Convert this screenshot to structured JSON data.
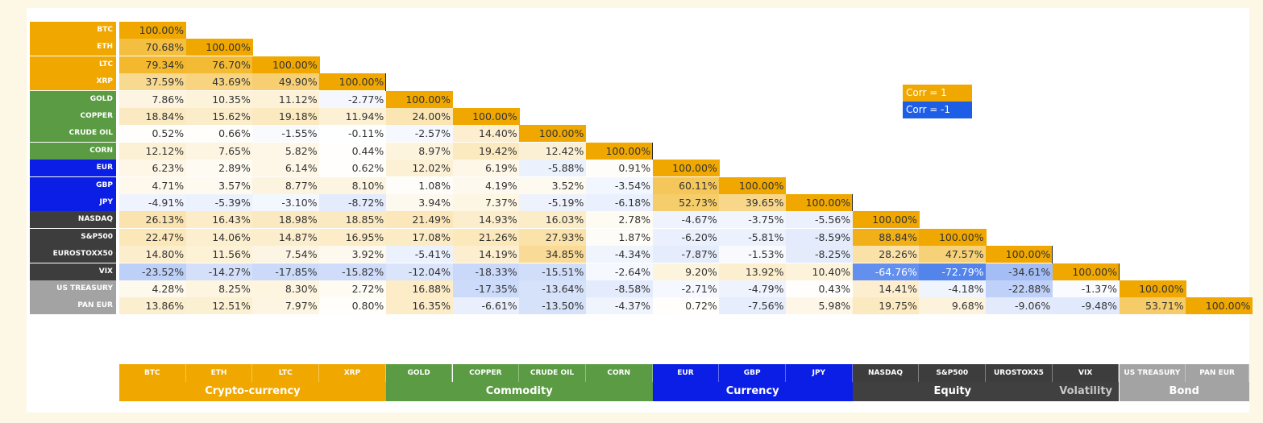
{
  "chart_data": {
    "type": "heatmap",
    "title": "",
    "value_format": "percent",
    "assets": [
      "BTC",
      "ETH",
      "LTC",
      "XRP",
      "GOLD",
      "COPPER",
      "CRUDE OIL",
      "CORN",
      "EUR",
      "GBP",
      "JPY",
      "NASDAQ",
      "S&P500",
      "EUROSTOXX50",
      "VIX",
      "US TREASURY",
      "PAN EUR"
    ],
    "column_labels": [
      "BTC",
      "ETH",
      "LTC",
      "XRP",
      "GOLD",
      "COPPER",
      "CRUDE OIL",
      "CORN",
      "EUR",
      "GBP",
      "JPY",
      "NASDAQ",
      "S&P500",
      "UROSTOXX5",
      "VIX",
      "US TREASURY",
      "PAN EUR"
    ],
    "groups": [
      {
        "name": "Crypto-currency",
        "count": 4,
        "color": "#f0a800"
      },
      {
        "name": "Commodity",
        "count": 4,
        "color": "#5a9b43"
      },
      {
        "name": "Currency",
        "count": 3,
        "color": "#0a1ee6"
      },
      {
        "name": "Equity",
        "count": 3,
        "color": "#404040"
      },
      {
        "name": "Volatility",
        "count": 1,
        "color": "#404040"
      },
      {
        "name": "Bond",
        "count": 2,
        "color": "#a3a3a3"
      }
    ],
    "matrix": [
      [
        "100.00%"
      ],
      [
        "70.68%",
        "100.00%"
      ],
      [
        "79.34%",
        "76.70%",
        "100.00%"
      ],
      [
        "37.59%",
        "43.69%",
        "49.90%",
        "100.00%"
      ],
      [
        "7.86%",
        "10.35%",
        "11.12%",
        "-2.77%",
        "100.00%"
      ],
      [
        "18.84%",
        "15.62%",
        "19.18%",
        "11.94%",
        "24.00%",
        "100.00%"
      ],
      [
        "0.52%",
        "0.66%",
        "-1.55%",
        "-0.11%",
        "-2.57%",
        "14.40%",
        "100.00%"
      ],
      [
        "12.12%",
        "7.65%",
        "5.82%",
        "0.44%",
        "8.97%",
        "19.42%",
        "12.42%",
        "100.00%"
      ],
      [
        "6.23%",
        "2.89%",
        "6.14%",
        "0.62%",
        "12.02%",
        "6.19%",
        "-5.88%",
        "0.91%",
        "100.00%"
      ],
      [
        "4.71%",
        "3.57%",
        "8.77%",
        "8.10%",
        "1.08%",
        "4.19%",
        "3.52%",
        "-3.54%",
        "60.11%",
        "100.00%"
      ],
      [
        "-4.91%",
        "-5.39%",
        "-3.10%",
        "-8.72%",
        "3.94%",
        "7.37%",
        "-5.19%",
        "-6.18%",
        "52.73%",
        "39.65%",
        "100.00%"
      ],
      [
        "26.13%",
        "16.43%",
        "18.98%",
        "18.85%",
        "21.49%",
        "14.93%",
        "16.03%",
        "2.78%",
        "-4.67%",
        "-3.75%",
        "-5.56%",
        "100.00%"
      ],
      [
        "22.47%",
        "14.06%",
        "14.87%",
        "16.95%",
        "17.08%",
        "21.26%",
        "27.93%",
        "1.87%",
        "-6.20%",
        "-5.81%",
        "-8.59%",
        "88.84%",
        "100.00%"
      ],
      [
        "14.80%",
        "11.56%",
        "7.54%",
        "3.92%",
        "-5.41%",
        "14.19%",
        "34.85%",
        "-4.34%",
        "-7.87%",
        "-1.53%",
        "-8.25%",
        "28.26%",
        "47.57%",
        "100.00%"
      ],
      [
        "-23.52%",
        "-14.27%",
        "-17.85%",
        "-15.82%",
        "-12.04%",
        "-18.33%",
        "-15.51%",
        "-2.64%",
        "9.20%",
        "13.92%",
        "10.40%",
        "-64.76%",
        "-72.79%",
        "-34.61%",
        "100.00%"
      ],
      [
        "4.28%",
        "8.25%",
        "8.30%",
        "2.72%",
        "16.88%",
        "-17.35%",
        "-13.64%",
        "-8.58%",
        "-2.71%",
        "-4.79%",
        "0.43%",
        "14.41%",
        "-4.18%",
        "-22.88%",
        "-1.37%",
        "100.00%"
      ],
      [
        "13.86%",
        "12.51%",
        "7.97%",
        "0.80%",
        "16.35%",
        "-6.61%",
        "-13.50%",
        "-4.37%",
        "0.72%",
        "-7.56%",
        "5.98%",
        "19.75%",
        "9.68%",
        "-9.06%",
        "-9.48%",
        "53.71%",
        "100.00%"
      ]
    ],
    "legend": [
      {
        "label": "Corr = 1",
        "color": "#f0a800"
      },
      {
        "label": "Corr = -1",
        "color": "#1e5ee6"
      }
    ],
    "legend_position": "right",
    "colors": {
      "positive": "#f0a800",
      "negative": "#1e5ee6",
      "neutral": "#ffffff"
    }
  }
}
